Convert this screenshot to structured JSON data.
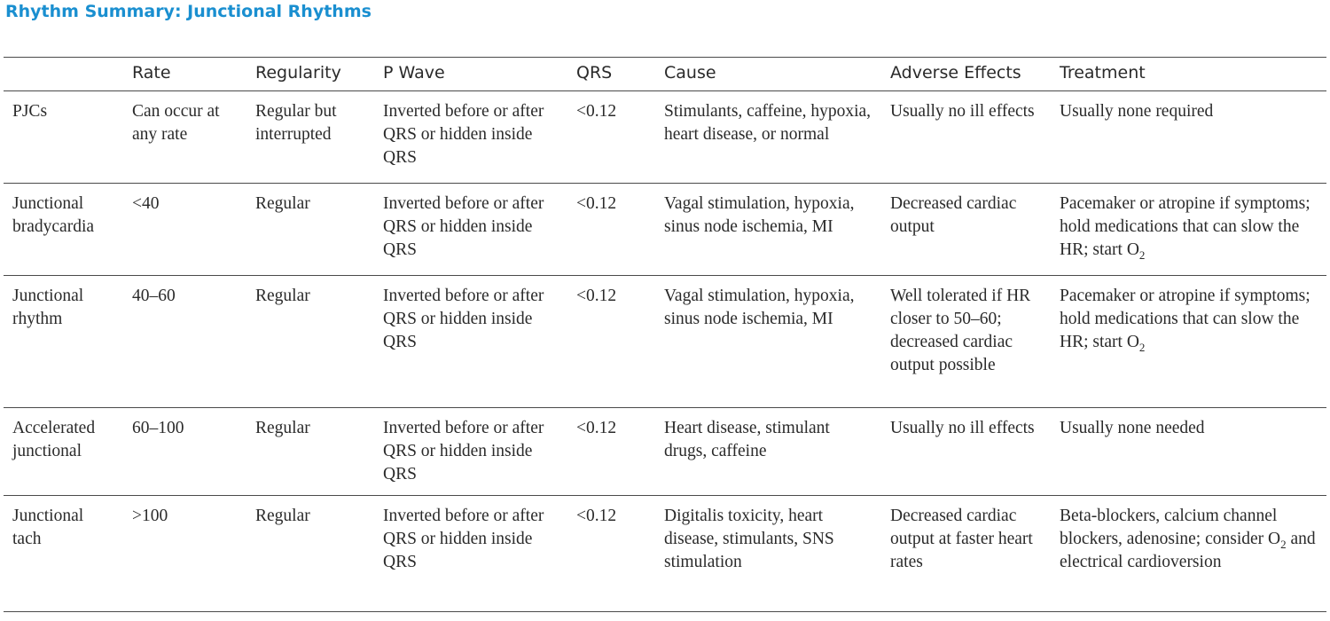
{
  "title": "Rhythm Summary: Junctional Rhythms",
  "columns": [
    "",
    "Rate",
    "Regularity",
    "P Wave",
    "QRS",
    "Cause",
    "Adverse Effects",
    "Treatment"
  ],
  "rows": [
    {
      "name": "PJCs",
      "rate": "Can occur at any rate",
      "regularity": "Regular but interrupted",
      "p_wave": "Inverted before or after QRS or hidden inside QRS",
      "qrs": "<0.12",
      "cause": "Stimulants, caffeine, hypoxia, heart disease, or normal",
      "adverse_effects": "Usually no ill effects",
      "treatment": "Usually none required"
    },
    {
      "name": "Junctional bradycardia",
      "rate": "<40",
      "regularity": "Regular",
      "p_wave": "Inverted before or after QRS or hidden inside QRS",
      "qrs": "<0.12",
      "cause": "Vagal stimulation, hypoxia, sinus node ischemia, MI",
      "adverse_effects": "Decreased cardiac output",
      "treatment": "Pacemaker or atropine if symptoms; hold medications that can slow the HR; start O",
      "treatment_sub": "2"
    },
    {
      "name": "Junctional rhythm",
      "rate": "40–60",
      "regularity": "Regular",
      "p_wave": "Inverted before or after QRS or hidden inside QRS",
      "qrs": "<0.12",
      "cause": "Vagal stimulation, hypoxia, sinus node ischemia, MI",
      "adverse_effects": "Well tolerated if HR closer to 50–60; decreased cardiac output possible",
      "treatment": "Pacemaker or atropine if symptoms; hold medications that can slow the HR; start O",
      "treatment_sub": "2"
    },
    {
      "name": "Accelerated junctional",
      "rate": "60–100",
      "regularity": "Regular",
      "p_wave": "Inverted before or after QRS or hidden inside QRS",
      "qrs": "<0.12",
      "cause": "Heart disease, stimulant drugs, caffeine",
      "adverse_effects": "Usually no ill effects",
      "treatment": "Usually none needed"
    },
    {
      "name": "Junctional tach",
      "rate": ">100",
      "regularity": "Regular",
      "p_wave": "Inverted before or after QRS or hidden inside QRS",
      "qrs": "<0.12",
      "cause": "Digitalis toxicity, heart disease, stimulants, SNS stimulation",
      "adverse_effects": "Decreased cardiac output at faster heart rates",
      "treatment": "Beta-blockers, calcium channel blockers, adenosine; consider O",
      "treatment_sub": "2",
      "treatment_tail": " and electrical cardioversion"
    }
  ]
}
